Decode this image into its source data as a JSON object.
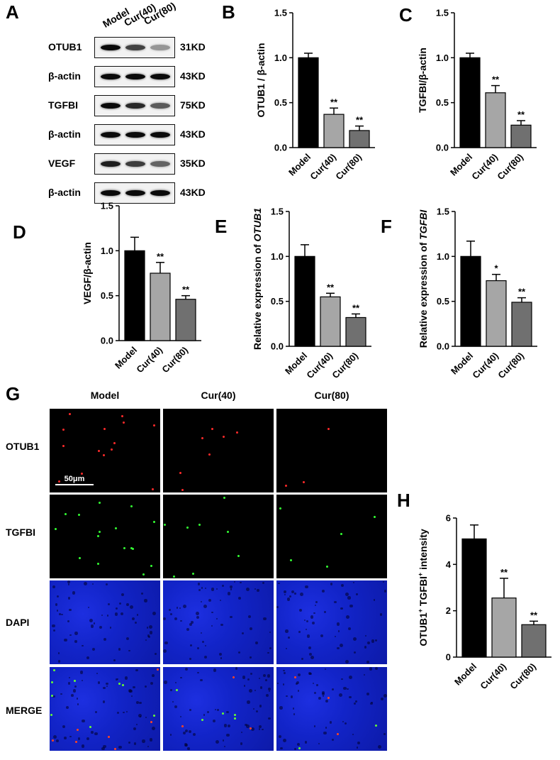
{
  "panels": {
    "A": "A",
    "B": "B",
    "C": "C",
    "D": "D",
    "E": "E",
    "F": "F",
    "G": "G",
    "H": "H"
  },
  "western_blot": {
    "lanes": [
      "Model",
      "Cur(40)",
      "Cur(80)"
    ],
    "rows": [
      {
        "protein": "OTUB1",
        "kd": "31KD",
        "intensity": [
          1.0,
          0.72,
          0.3
        ]
      },
      {
        "protein": "β-actin",
        "kd": "43KD",
        "intensity": [
          1.0,
          1.0,
          1.0
        ]
      },
      {
        "protein": "TGFBI",
        "kd": "75KD",
        "intensity": [
          1.0,
          0.85,
          0.6
        ]
      },
      {
        "protein": "β-actin",
        "kd": "43KD",
        "intensity": [
          1.0,
          1.0,
          1.0
        ]
      },
      {
        "protein": "VEGF",
        "kd": "35KD",
        "intensity": [
          0.9,
          0.75,
          0.55
        ]
      },
      {
        "protein": "β-actin",
        "kd": "43KD",
        "intensity": [
          1.0,
          1.0,
          1.0
        ]
      }
    ]
  },
  "chart_data": [
    {
      "id": "B",
      "type": "bar",
      "categories": [
        "Model",
        "Cur(40)",
        "Cur(80)"
      ],
      "values": [
        1.0,
        0.37,
        0.19
      ],
      "errors": [
        0.05,
        0.07,
        0.05
      ],
      "sig": [
        "",
        "**",
        "**"
      ],
      "ylabel": "OTUB1 / β-actin",
      "ylim": [
        0,
        1.5
      ],
      "ticks": [
        "0.0",
        "0.5",
        "1.0",
        "1.5"
      ],
      "colors": [
        "#000000",
        "#a6a6a6",
        "#707070"
      ]
    },
    {
      "id": "C",
      "type": "bar",
      "categories": [
        "Model",
        "Cur(40)",
        "Cur(80)"
      ],
      "values": [
        1.0,
        0.61,
        0.25
      ],
      "errors": [
        0.05,
        0.08,
        0.05
      ],
      "sig": [
        "",
        "**",
        "**"
      ],
      "ylabel": "TGFBI/β-actin",
      "ylim": [
        0,
        1.5
      ],
      "ticks": [
        "0.0",
        "0.5",
        "1.0",
        "1.5"
      ],
      "colors": [
        "#000000",
        "#a6a6a6",
        "#707070"
      ]
    },
    {
      "id": "D",
      "type": "bar",
      "categories": [
        "Model",
        "Cur(40)",
        "Cur(80)"
      ],
      "values": [
        1.0,
        0.75,
        0.46
      ],
      "errors": [
        0.15,
        0.12,
        0.04
      ],
      "sig": [
        "",
        "**",
        "**"
      ],
      "ylabel": "VEGF/β-actin",
      "ylim": [
        0,
        1.5
      ],
      "ticks": [
        "0.0",
        "0.5",
        "1.0",
        "1.5"
      ],
      "colors": [
        "#000000",
        "#a6a6a6",
        "#707070"
      ]
    },
    {
      "id": "E",
      "type": "bar",
      "categories": [
        "Model",
        "Cur(40)",
        "Cur(80)"
      ],
      "values": [
        1.0,
        0.55,
        0.32
      ],
      "errors": [
        0.13,
        0.04,
        0.04
      ],
      "sig": [
        "",
        "**",
        "**"
      ],
      "ylabel_prefix": "Relative expression of ",
      "ylabel_italic": "OTUB1",
      "ylim": [
        0,
        1.5
      ],
      "ticks": [
        "0.0",
        "0.5",
        "1.0",
        "1.5"
      ],
      "colors": [
        "#000000",
        "#a6a6a6",
        "#707070"
      ]
    },
    {
      "id": "F",
      "type": "bar",
      "categories": [
        "Model",
        "Cur(40)",
        "Cur(80)"
      ],
      "values": [
        1.0,
        0.73,
        0.49
      ],
      "errors": [
        0.17,
        0.07,
        0.05
      ],
      "sig": [
        "",
        "*",
        "**"
      ],
      "ylabel_prefix": "Relative expression of ",
      "ylabel_italic": "TGFBI",
      "ylim": [
        0,
        1.5
      ],
      "ticks": [
        "0.0",
        "0.5",
        "1.0",
        "1.5"
      ],
      "colors": [
        "#000000",
        "#a6a6a6",
        "#707070"
      ]
    },
    {
      "id": "H",
      "type": "bar",
      "categories": [
        "Model",
        "Cur(40)",
        "Cur(80)"
      ],
      "values": [
        5.1,
        2.55,
        1.4
      ],
      "errors": [
        0.6,
        0.85,
        0.15
      ],
      "sig": [
        "",
        "**",
        "**"
      ],
      "ylabel_parts": [
        "OTUB1",
        "+",
        " TGFBI",
        "+",
        " intensity"
      ],
      "ylim": [
        0,
        6
      ],
      "ticks": [
        "0",
        "2",
        "4",
        "6"
      ],
      "colors": [
        "#000000",
        "#a6a6a6",
        "#707070"
      ]
    }
  ],
  "immunofluorescence": {
    "columns": [
      "Model",
      "Cur(40)",
      "Cur(80)"
    ],
    "rows": [
      "OTUB1",
      "TGFBI",
      "DAPI",
      "MERGE"
    ],
    "scale_bar": "50μm"
  }
}
